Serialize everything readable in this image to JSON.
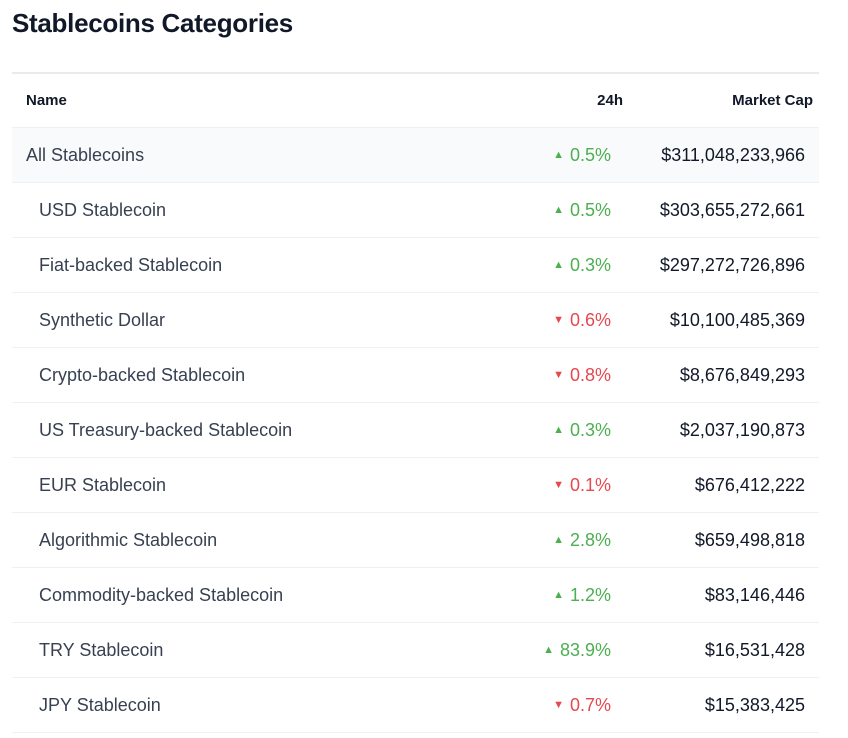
{
  "title": "Stablecoins Categories",
  "columns": {
    "name": "Name",
    "change": "24h",
    "market_cap": "Market Cap"
  },
  "colors": {
    "up": "#4caf50",
    "down": "#e5484d"
  },
  "rows": [
    {
      "name": "All Stablecoins",
      "change": "0.5%",
      "direction": "up",
      "market_cap": "$311,048,233,966"
    },
    {
      "name": "USD Stablecoin",
      "change": "0.5%",
      "direction": "up",
      "market_cap": "$303,655,272,661"
    },
    {
      "name": "Fiat-backed Stablecoin",
      "change": "0.3%",
      "direction": "up",
      "market_cap": "$297,272,726,896"
    },
    {
      "name": "Synthetic Dollar",
      "change": "0.6%",
      "direction": "down",
      "market_cap": "$10,100,485,369"
    },
    {
      "name": "Crypto-backed Stablecoin",
      "change": "0.8%",
      "direction": "down",
      "market_cap": "$8,676,849,293"
    },
    {
      "name": "US Treasury-backed Stablecoin",
      "change": "0.3%",
      "direction": "up",
      "market_cap": "$2,037,190,873"
    },
    {
      "name": "EUR Stablecoin",
      "change": "0.1%",
      "direction": "down",
      "market_cap": "$676,412,222"
    },
    {
      "name": "Algorithmic Stablecoin",
      "change": "2.8%",
      "direction": "up",
      "market_cap": "$659,498,818"
    },
    {
      "name": "Commodity-backed Stablecoin",
      "change": "1.2%",
      "direction": "up",
      "market_cap": "$83,146,446"
    },
    {
      "name": "TRY Stablecoin",
      "change": "83.9%",
      "direction": "up",
      "market_cap": "$16,531,428"
    },
    {
      "name": "JPY Stablecoin",
      "change": "0.7%",
      "direction": "down",
      "market_cap": "$15,383,425"
    }
  ]
}
